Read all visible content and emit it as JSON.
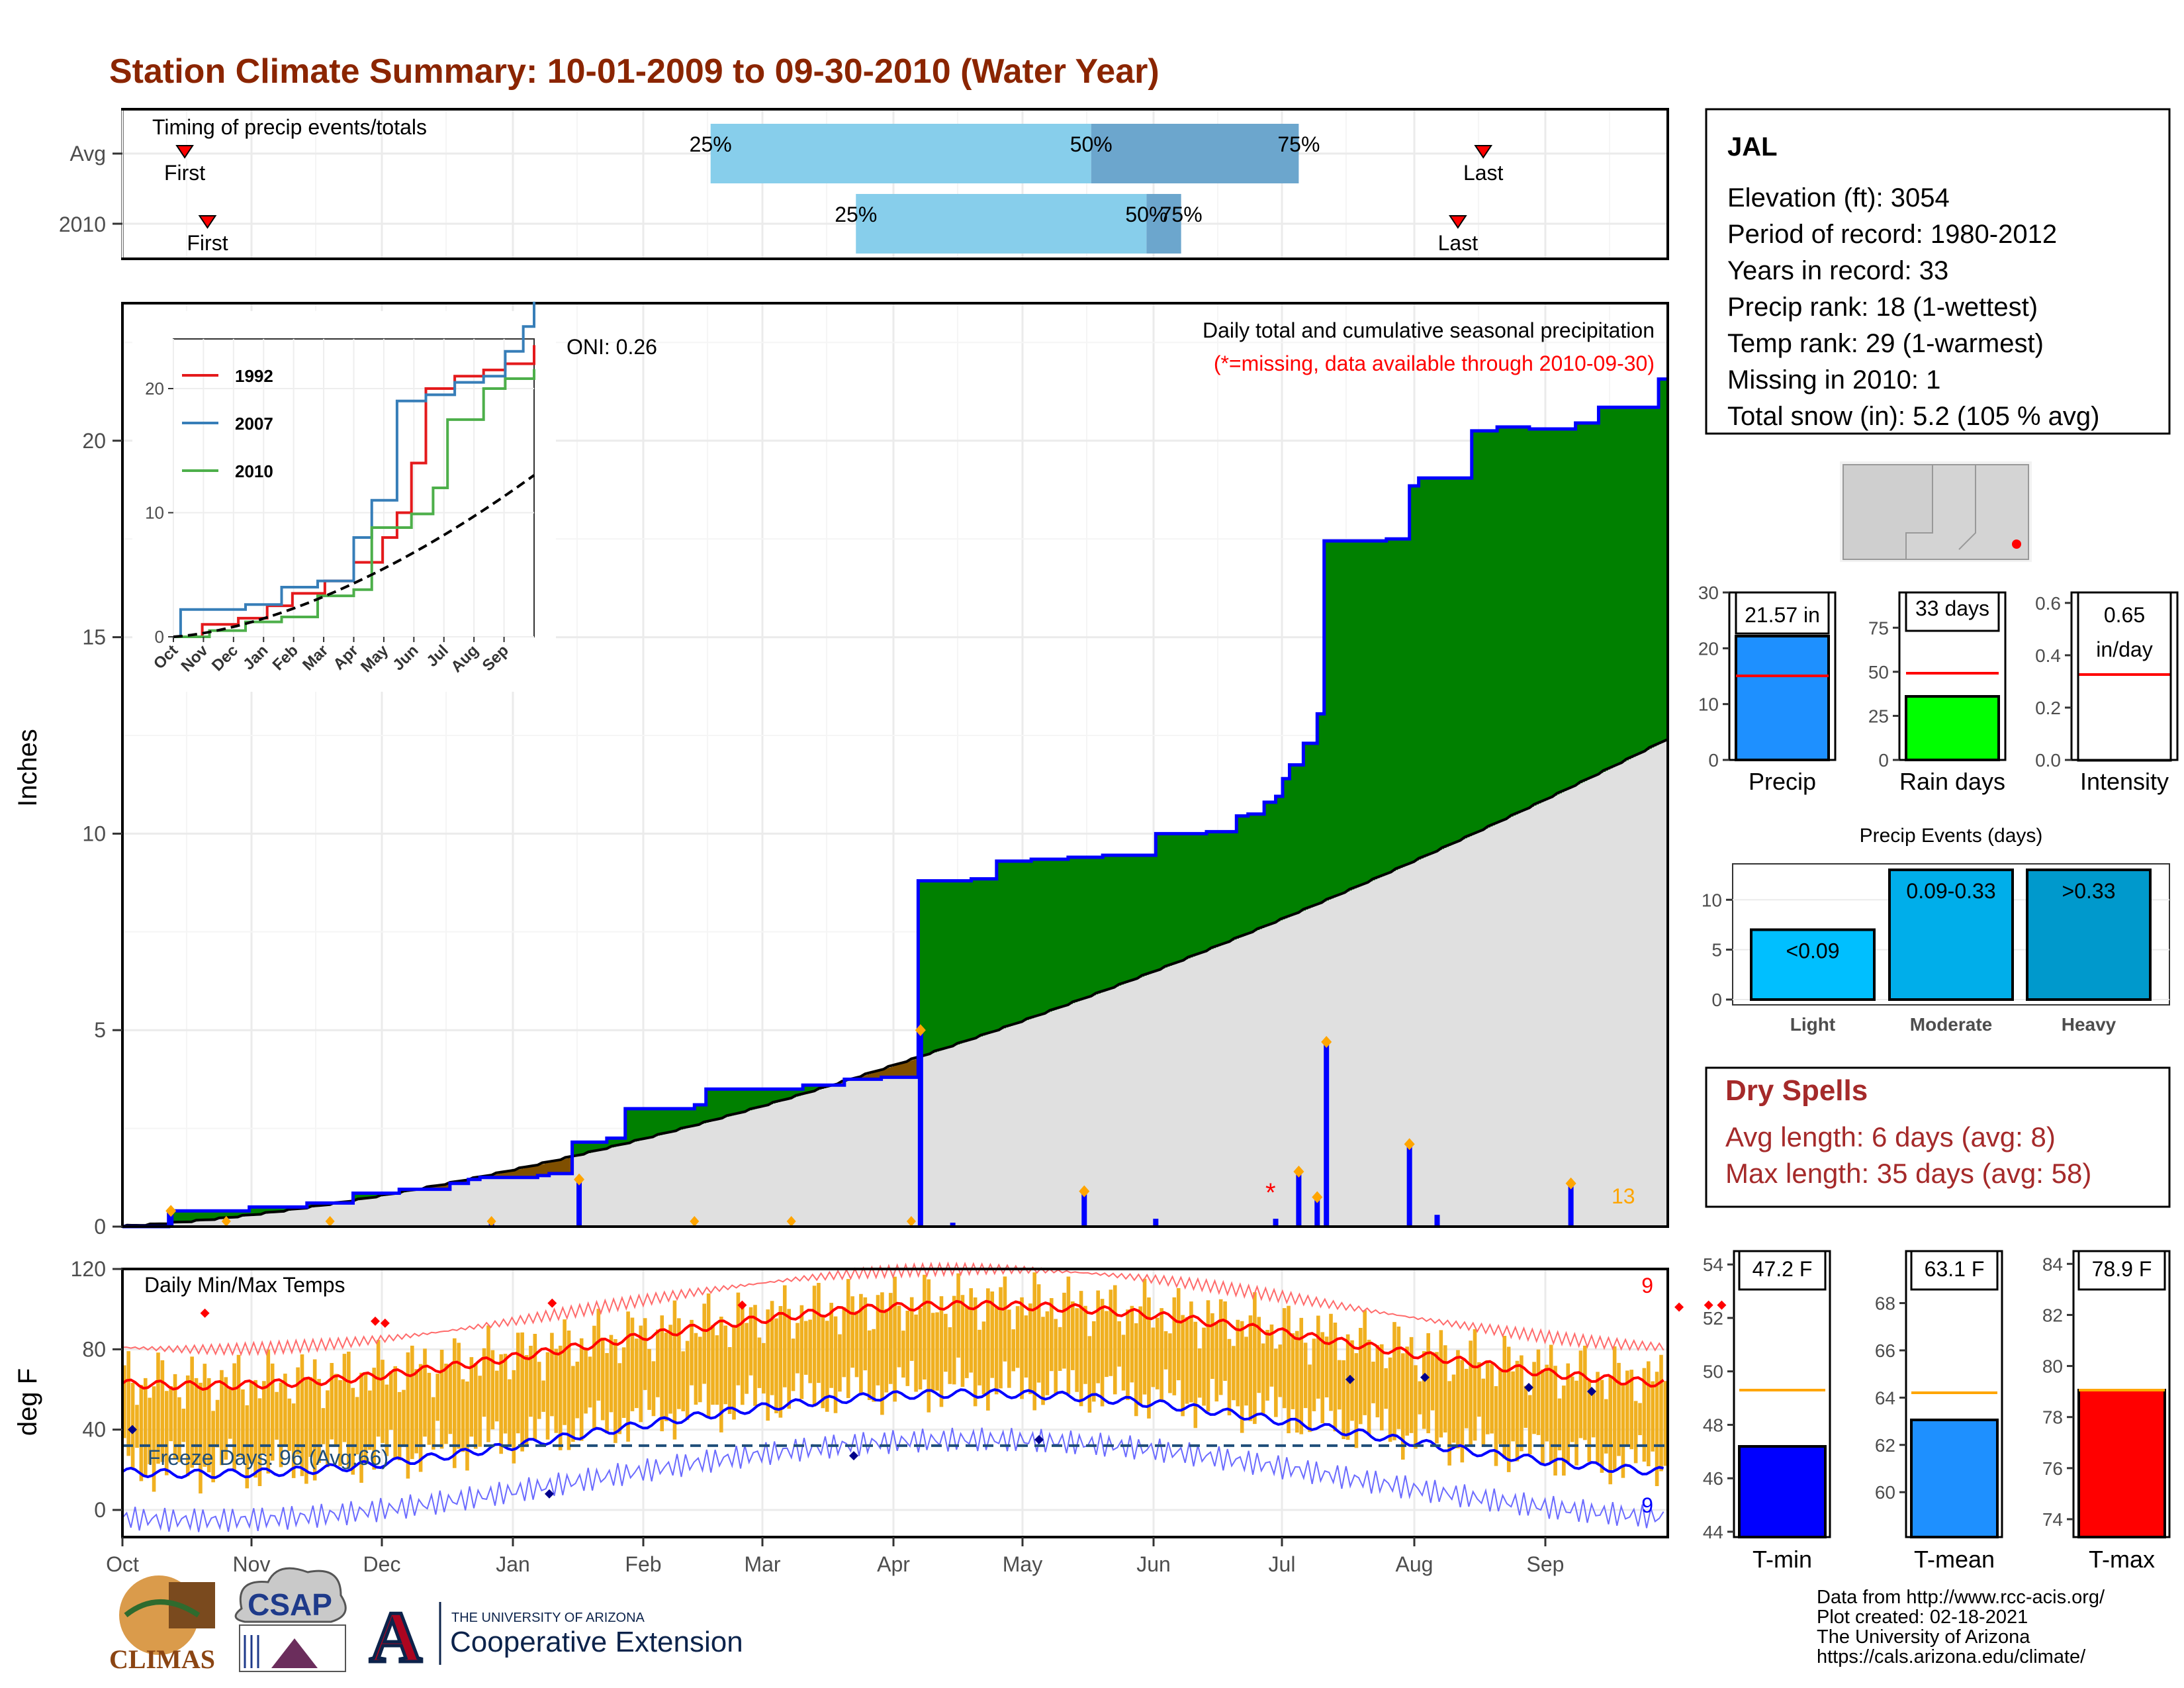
{
  "title": "Station Climate Summary: 10-01-2009 to 09-30-2010 (Water Year)",
  "timing": {
    "label": "Timing of precip events/totals",
    "rows": [
      {
        "name": "Avg",
        "first_day": 27,
        "q25": 255,
        "q50": 420,
        "q75": 510,
        "last_day": 590
      },
      {
        "name": "2010",
        "first_day": 1,
        "q25": 318,
        "q50": 444,
        "q75": 459,
        "last_day": 579
      }
    ],
    "first_label": "First",
    "last_label": "Last",
    "pct_labels": [
      "25%",
      "50%",
      "75%"
    ]
  },
  "precip_panel": {
    "ylabel": "Inches",
    "oni": "ONI: 0.26",
    "subtitle": "Daily total and cumulative seasonal precipitation",
    "missing_note": "(*=missing, data available through 2010-09-30)",
    "yticks": [
      "0",
      "5",
      "10",
      "15",
      "20"
    ],
    "ylim": [
      0,
      23.5
    ],
    "event_count": "13",
    "missing_day": 272
  },
  "chart_data": [
    {
      "type": "area",
      "title": "Daily total and cumulative seasonal precipitation",
      "ylabel": "Inches",
      "xlim_days": [
        0,
        364
      ],
      "ylim": [
        0,
        23.5
      ],
      "cumulative_2010_steps": [
        [
          0,
          0
        ],
        [
          20,
          0.4
        ],
        [
          55,
          0.5
        ],
        [
          80,
          0.6
        ],
        [
          100,
          0.85
        ],
        [
          120,
          0.95
        ],
        [
          142,
          1.1
        ],
        [
          150,
          1.2
        ],
        [
          155,
          1.25
        ],
        [
          180,
          1.3
        ],
        [
          185,
          1.35
        ],
        [
          195,
          2.15
        ],
        [
          210,
          2.25
        ],
        [
          218,
          3.0
        ],
        [
          248,
          3.1
        ],
        [
          253,
          3.5
        ],
        [
          295,
          3.6
        ],
        [
          313,
          3.75
        ],
        [
          329,
          3.8
        ],
        [
          345,
          8.8
        ],
        [
          368,
          8.85
        ],
        [
          379,
          9.3
        ],
        [
          394,
          9.35
        ],
        [
          410,
          9.4
        ],
        [
          425,
          9.45
        ],
        [
          448,
          10.0
        ],
        [
          470,
          10.05
        ],
        [
          483,
          10.45
        ],
        [
          488,
          10.5
        ],
        [
          495,
          10.8
        ],
        [
          500,
          10.95
        ],
        [
          503,
          11.4
        ],
        [
          506,
          11.75
        ],
        [
          512,
          12.3
        ],
        [
          518,
          13.05
        ],
        [
          521,
          17.45
        ],
        [
          548,
          17.5
        ],
        [
          558,
          18.85
        ],
        [
          562,
          19.05
        ],
        [
          585,
          20.25
        ],
        [
          596,
          20.35
        ],
        [
          610,
          20.3
        ],
        [
          630,
          20.45
        ],
        [
          640,
          20.85
        ],
        [
          666,
          21.57
        ],
        [
          670,
          21.57
        ]
      ],
      "cumulative_avg_end": 12.4,
      "daily_events": [
        {
          "day": 21,
          "in": 0.4
        },
        {
          "day": 160,
          "in": 0.1
        },
        {
          "day": 198,
          "in": 1.2
        },
        {
          "day": 346,
          "in": 5.0
        },
        {
          "day": 360,
          "in": 0.1
        },
        {
          "day": 417,
          "in": 0.9
        },
        {
          "day": 448,
          "in": 0.2
        },
        {
          "day": 500,
          "in": 0.2
        },
        {
          "day": 510,
          "in": 1.4
        },
        {
          "day": 518,
          "in": 0.75
        },
        {
          "day": 522,
          "in": 4.7
        },
        {
          "day": 558,
          "in": 2.1
        },
        {
          "day": 570,
          "in": 0.3
        },
        {
          "day": 628,
          "in": 1.1
        }
      ]
    },
    {
      "type": "line",
      "title": "Daily Min/Max Temps",
      "ylabel": "deg F",
      "ylim": [
        -8,
        120
      ],
      "yticks": [
        0,
        40,
        80,
        120
      ],
      "series": [
        {
          "name": "Avg Max",
          "color": "#ff0000"
        },
        {
          "name": "Avg Min",
          "color": "#0000ff"
        }
      ]
    },
    {
      "type": "bar",
      "categories": [
        "Precip",
        "Rain days",
        "Intensity"
      ],
      "values": [
        21.57,
        33,
        0.65
      ],
      "avg": [
        15,
        46,
        0.33
      ],
      "labels": [
        "21.57 in",
        "33 days",
        "0.65\nin/day"
      ],
      "ylims": [
        [
          0,
          30
        ],
        [
          0,
          90
        ],
        [
          0,
          0.65
        ]
      ]
    },
    {
      "type": "bar",
      "title": "Precip Events (days)",
      "categories": [
        "Light",
        "Moderate",
        "Heavy"
      ],
      "values": [
        7,
        13,
        13
      ],
      "labels": [
        "<0.09",
        "0.09-0.33",
        ">0.33"
      ],
      "ylim": [
        0,
        14
      ]
    },
    {
      "type": "bar",
      "categories": [
        "T-min",
        "T-mean",
        "T-max"
      ],
      "values": [
        47.2,
        63.1,
        78.9
      ],
      "avg": [
        49.3,
        64.1,
        78.9
      ],
      "labels": [
        "47.2 F",
        "63.1 F",
        "78.9 F"
      ]
    }
  ],
  "temp_panel": {
    "label": "Daily Min/Max Temps",
    "ylabel": "deg F",
    "yticks": [
      "0",
      "40",
      "80",
      "120"
    ],
    "freeze_label": "Freeze Days: 96 (Avg:66)",
    "count_max": "9",
    "count_min": "9",
    "months": [
      "Oct",
      "Nov",
      "Dec",
      "Jan",
      "Feb",
      "Mar",
      "Apr",
      "May",
      "Jun",
      "Jul",
      "Aug",
      "Sep"
    ]
  },
  "inset": {
    "series": [
      {
        "name": "1992",
        "color": "#e41a1c"
      },
      {
        "name": "2007",
        "color": "#377eb8"
      },
      {
        "name": "2010",
        "color": "#4daf4a"
      }
    ],
    "yticks": [
      "0",
      "10",
      "20"
    ],
    "months": [
      "Oct",
      "Nov",
      "Dec",
      "Jan",
      "Feb",
      "Mar",
      "Apr",
      "May",
      "Jun",
      "Jul",
      "Aug",
      "Sep"
    ]
  },
  "station": {
    "name": "JAL",
    "lines": [
      "Elevation (ft): 3054",
      "Period of record: 1980-2012",
      "Years in record: 33",
      "Precip rank: 18 (1-wettest)",
      "Temp rank: 29 (1-warmest)",
      "Missing in 2010: 1",
      "Total snow (in): 5.2 (105 % avg)"
    ]
  },
  "bars": {
    "precip": {
      "label": "Precip",
      "value_text": "21.57 in",
      "yticks": [
        "0",
        "10",
        "20",
        "30"
      ]
    },
    "raindays": {
      "label": "Rain days",
      "value_text": "33 days",
      "yticks": [
        "0",
        "25",
        "50",
        "75"
      ]
    },
    "intensity": {
      "label": "Intensity",
      "value_text_1": "0.65",
      "value_text_2": "in/day",
      "yticks": [
        "0.0",
        "0.2",
        "0.4",
        "0.6"
      ]
    }
  },
  "events": {
    "title": "Precip Events (days)",
    "yticks": [
      "0",
      "5",
      "10"
    ],
    "cats": [
      "Light",
      "Moderate",
      "Heavy"
    ],
    "labels": [
      "<0.09",
      "0.09-0.33",
      ">0.33"
    ]
  },
  "dry_spells": {
    "title": "Dry Spells",
    "avg_length": "Avg length: 6 days (avg: 8)",
    "max_length": "Max length: 35 days (avg: 58)"
  },
  "temps": {
    "tmin": {
      "label": "T-min",
      "value_text": "47.2 F",
      "yticks": [
        "44",
        "46",
        "48",
        "50",
        "52",
        "54"
      ]
    },
    "tmean": {
      "label": "T-mean",
      "value_text": "63.1 F",
      "yticks": [
        "60",
        "62",
        "64",
        "66",
        "68"
      ]
    },
    "tmax": {
      "label": "T-max",
      "value_text": "78.9 F",
      "yticks": [
        "74",
        "76",
        "78",
        "80",
        "82",
        "84"
      ]
    }
  },
  "footer": {
    "lines": [
      "Data from http://www.rcc-acis.org/",
      "Plot created: 02-18-2021",
      "The University of Arizona",
      "https://cals.arizona.edu/climate/"
    ]
  },
  "logos": {
    "climas": "CLIMAS",
    "csap": "CSAP",
    "ua_small": "THE UNIVERSITY OF ARIZONA",
    "ua_big": "Cooperative Extension",
    "ua_letter": "A"
  },
  "colors": {
    "title": "#8b2500",
    "green": "#008000",
    "brown": "#7f4f00",
    "grey_area": "#e0e0e0",
    "blue": "#0000ff",
    "orange_bars": "#f0b020",
    "dry_red": "#a52a2a",
    "light_blue": "#87ceeb",
    "mid_blue": "#6ca6cd"
  }
}
